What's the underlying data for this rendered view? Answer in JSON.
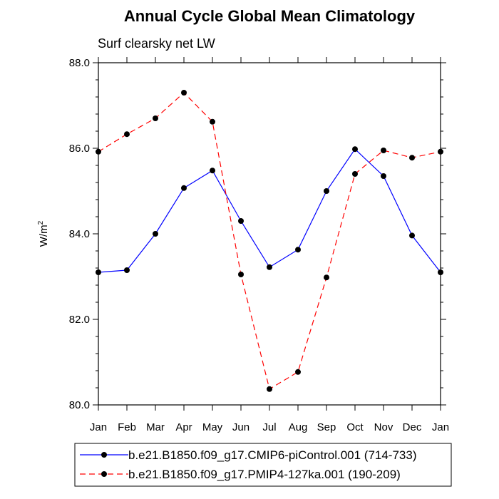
{
  "chart_data": {
    "type": "line",
    "title": "Annual Cycle Global Mean Climatology",
    "subtitle": "Surf clearsky net LW",
    "ylabel": "W/m",
    "ylabel_superscript": "2",
    "xlabel": "",
    "ylim": [
      80.0,
      88.0
    ],
    "yticks": [
      "80.0",
      "82.0",
      "84.0",
      "86.0",
      "88.0"
    ],
    "categories": [
      "Jan",
      "Feb",
      "Mar",
      "Apr",
      "May",
      "Jun",
      "Jul",
      "Aug",
      "Sep",
      "Oct",
      "Nov",
      "Dec",
      "Jan"
    ],
    "series": [
      {
        "name": "b.e21.B1850.f09_g17.CMIP6-piControl.001 (714-733)",
        "color": "#0000ff",
        "style": "solid",
        "values": [
          83.1,
          83.15,
          84.0,
          85.07,
          85.48,
          84.3,
          83.22,
          83.63,
          85.0,
          85.98,
          85.35,
          83.96,
          83.1
        ]
      },
      {
        "name": "b.e21.B1850.f09_g17.PMIP4-127ka.001 (190-209)",
        "color": "#ff0000",
        "style": "dashed",
        "values": [
          85.92,
          86.33,
          86.7,
          87.3,
          86.62,
          83.05,
          80.37,
          80.77,
          82.98,
          85.4,
          85.95,
          85.78,
          85.92
        ]
      }
    ]
  }
}
